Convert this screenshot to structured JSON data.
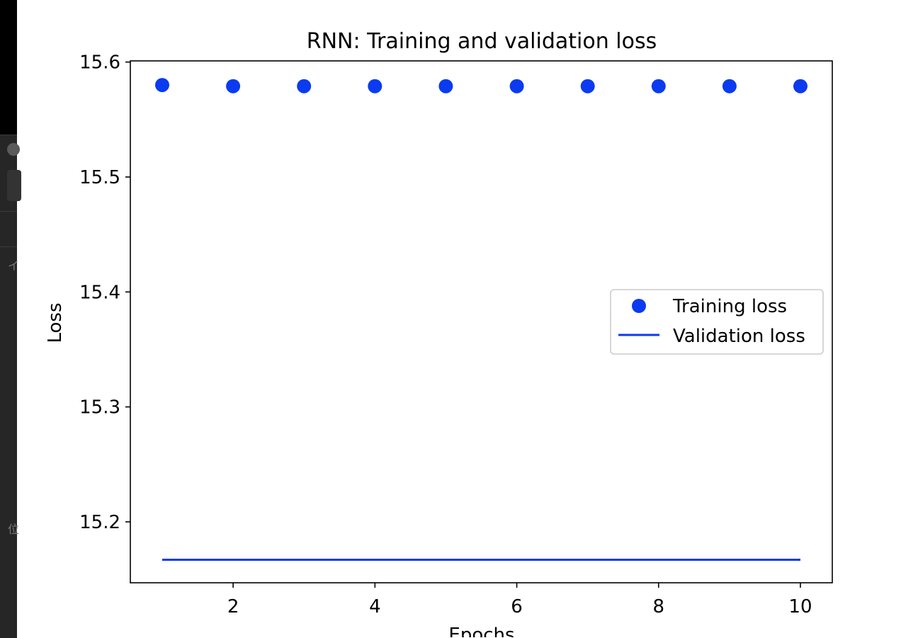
{
  "chart_data": {
    "type": "scatter+line",
    "title": "RNN: Training and validation loss",
    "xlabel": "Epochs",
    "ylabel": "Loss",
    "xlim": [
      0.55,
      10.45
    ],
    "ylim": [
      15.147,
      15.601
    ],
    "xticks": [
      2,
      4,
      6,
      8,
      10
    ],
    "yticks": [
      15.2,
      15.3,
      15.4,
      15.5,
      15.6
    ],
    "xtick_labels": [
      "2",
      "4",
      "6",
      "8",
      "10"
    ],
    "ytick_labels": [
      "15.2",
      "15.3",
      "15.4",
      "15.5",
      "15.6"
    ],
    "grid": false,
    "legend_position": "center-right",
    "series": [
      {
        "name": "Training loss",
        "style": "markers",
        "color": "#0a3bf0",
        "x": [
          1,
          2,
          3,
          4,
          5,
          6,
          7,
          8,
          9,
          10
        ],
        "y": [
          15.58,
          15.579,
          15.579,
          15.579,
          15.579,
          15.579,
          15.579,
          15.579,
          15.579,
          15.579
        ]
      },
      {
        "name": "Validation loss",
        "style": "line",
        "color": "#0a3bf0",
        "x": [
          1,
          2,
          3,
          4,
          5,
          6,
          7,
          8,
          9,
          10
        ],
        "y": [
          15.167,
          15.167,
          15.167,
          15.167,
          15.167,
          15.167,
          15.167,
          15.167,
          15.167,
          15.167
        ]
      }
    ]
  },
  "background": {
    "glyphs": [
      "イ",
      "位"
    ]
  }
}
